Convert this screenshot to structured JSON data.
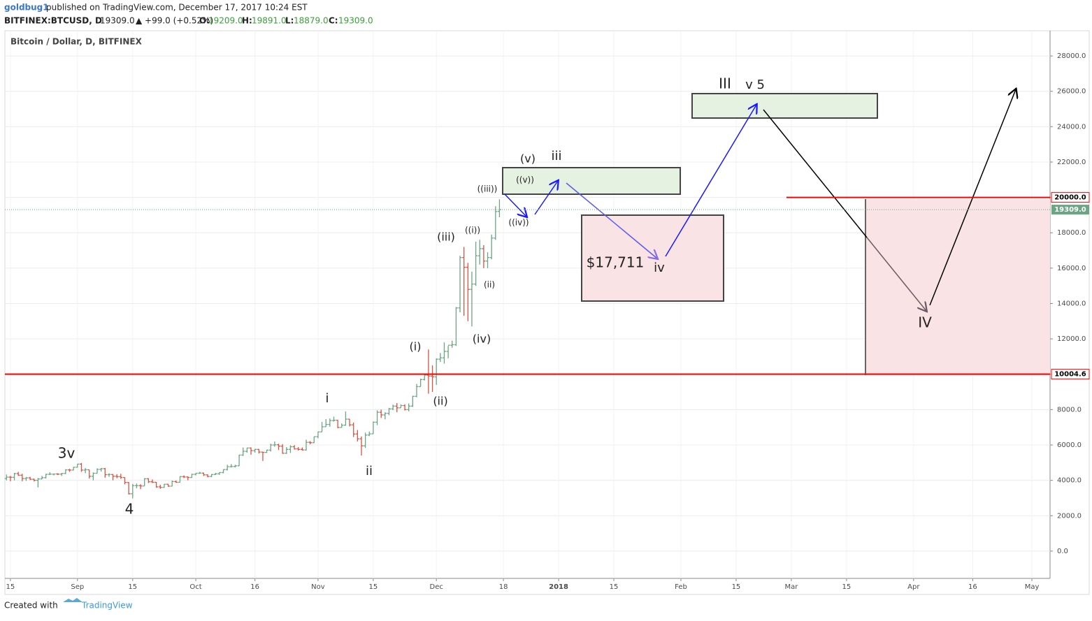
{
  "header": {
    "author": "goldbug1",
    "published": "published on TradingView.com, December 17, 2017 10:24 EST",
    "symbol": "BITFINEX:BTCUSD, D",
    "last": "19309.0",
    "change": "▲ +99.0 (+0.52%)",
    "o_label": "O:",
    "o": "19209.0",
    "h_label": "H:",
    "h": "19891.0",
    "l_label": "L:",
    "l": "18879.0",
    "c_label": "C:",
    "c": "19309.0"
  },
  "footer": {
    "created": "Created with",
    "brand": "TradingView"
  },
  "chart_data": {
    "type": "ohlc",
    "title": "Bitcoin / Dollar, D, BITFINEX",
    "up_color": "#6ba583",
    "down_color": "#d75442",
    "grid": true,
    "xlim": [
      -0.4,
      264.6
    ],
    "xticks": [
      {
        "value": 1,
        "label": "15"
      },
      {
        "value": 18,
        "label": "Sep"
      },
      {
        "value": 32,
        "label": "15"
      },
      {
        "value": 48,
        "label": "Oct"
      },
      {
        "value": 63,
        "label": "16"
      },
      {
        "value": 79,
        "label": "Nov"
      },
      {
        "value": 93,
        "label": "15"
      },
      {
        "value": 109,
        "label": "Dec"
      },
      {
        "value": 126,
        "label": "18"
      },
      {
        "value": 140,
        "label": "2018"
      },
      {
        "value": 154,
        "label": "15"
      },
      {
        "value": 171,
        "label": "Feb"
      },
      {
        "value": 185,
        "label": "15"
      },
      {
        "value": 199,
        "label": "Mar"
      },
      {
        "value": 213,
        "label": "15"
      },
      {
        "value": 230,
        "label": "Apr"
      },
      {
        "value": 245,
        "label": "16"
      },
      {
        "value": 260,
        "label": "May"
      }
    ],
    "ylim": [
      -1545,
      29426
    ],
    "yticks": [
      {
        "value": 0,
        "label": "0.0"
      },
      {
        "value": 2000,
        "label": "2000.0"
      },
      {
        "value": 4000,
        "label": "4000.0"
      },
      {
        "value": 6000,
        "label": "6000.0"
      },
      {
        "value": 8000,
        "label": "8000.0"
      },
      {
        "value": 10000,
        "label": "10000.0"
      },
      {
        "value": 12000,
        "label": "12000.0"
      },
      {
        "value": 14000,
        "label": "14000.0"
      },
      {
        "value": 16000,
        "label": "16000.0"
      },
      {
        "value": 18000,
        "label": "18000.0"
      },
      {
        "value": 20000,
        "label": "20000.0"
      },
      {
        "value": 22000,
        "label": "22000.0"
      },
      {
        "value": 24000,
        "label": "24000.0"
      },
      {
        "value": 26000,
        "label": "26000.0"
      },
      {
        "value": 28000,
        "label": "28000.0"
      }
    ],
    "levels": [
      {
        "value": 20000,
        "label": "20000.0",
        "color": "#ff0000"
      },
      {
        "value": 10004.6,
        "label": "10004.6",
        "color": "#ff0000"
      }
    ],
    "last_price": {
      "value": 19309,
      "label": "19309.0",
      "color": "#6ba583"
    },
    "annotations": [
      "3v",
      "4",
      "i",
      "ii",
      "(i)",
      "(ii)",
      "(iii)",
      "(iv)",
      "((i))",
      "(ii)",
      "((iii))",
      "((iv))",
      "((v))",
      "(v)",
      "iii",
      "$17,711",
      "iv",
      "III",
      "v 5",
      "IV"
    ],
    "bars": [
      [
        4100,
        4330,
        4000,
        4180
      ],
      [
        4180,
        4250,
        3950,
        4170
      ],
      [
        4170,
        4420,
        4000,
        4380
      ],
      [
        4380,
        4480,
        4250,
        4290
      ],
      [
        4290,
        4370,
        3950,
        4100
      ],
      [
        4100,
        4190,
        3970,
        4140
      ],
      [
        4140,
        4200,
        4020,
        4060
      ],
      [
        4060,
        4100,
        3940,
        4000
      ],
      [
        4000,
        4130,
        3600,
        4080
      ],
      [
        4080,
        4250,
        4060,
        4150
      ],
      [
        4150,
        4370,
        4110,
        4340
      ],
      [
        4340,
        4460,
        4300,
        4350
      ],
      [
        4350,
        4380,
        4280,
        4360
      ],
      [
        4360,
        4400,
        4300,
        4350
      ],
      [
        4350,
        4420,
        4250,
        4390
      ],
      [
        4390,
        4630,
        4350,
        4590
      ],
      [
        4590,
        4650,
        4480,
        4580
      ],
      [
        4580,
        4760,
        4560,
        4740
      ],
      [
        4740,
        4930,
        4720,
        4920
      ],
      [
        4920,
        4980,
        4480,
        4580
      ],
      [
        4580,
        4700,
        4400,
        4600
      ],
      [
        4600,
        4600,
        4100,
        4230
      ],
      [
        4230,
        4450,
        4000,
        4400
      ],
      [
        4400,
        4680,
        4390,
        4620
      ],
      [
        4620,
        4700,
        4500,
        4660
      ],
      [
        4660,
        4700,
        4150,
        4320
      ],
      [
        4320,
        4400,
        4200,
        4330
      ],
      [
        4330,
        4350,
        4000,
        4230
      ],
      [
        4230,
        4350,
        4120,
        4210
      ],
      [
        4210,
        4370,
        4080,
        4160
      ],
      [
        4160,
        4170,
        3770,
        3880
      ],
      [
        3880,
        3900,
        3200,
        3240
      ],
      [
        3240,
        3800,
        2980,
        3700
      ],
      [
        3700,
        3820,
        3550,
        3700
      ],
      [
        3700,
        3780,
        3500,
        3680
      ],
      [
        3680,
        4120,
        3680,
        4090
      ],
      [
        4090,
        4120,
        3850,
        3920
      ],
      [
        3920,
        4050,
        3850,
        3890
      ],
      [
        3890,
        3910,
        3580,
        3630
      ],
      [
        3630,
        3750,
        3520,
        3600
      ],
      [
        3600,
        3800,
        3580,
        3780
      ],
      [
        3780,
        3800,
        3640,
        3670
      ],
      [
        3670,
        3990,
        3660,
        3930
      ],
      [
        3930,
        3990,
        3860,
        3890
      ],
      [
        3890,
        4230,
        3880,
        4210
      ],
      [
        4210,
        4280,
        4130,
        4190
      ],
      [
        4190,
        4220,
        4000,
        4160
      ],
      [
        4160,
        4370,
        4150,
        4340
      ],
      [
        4340,
        4410,
        4280,
        4400
      ],
      [
        4400,
        4480,
        4370,
        4410
      ],
      [
        4410,
        4440,
        4250,
        4310
      ],
      [
        4310,
        4340,
        4170,
        4220
      ],
      [
        4220,
        4350,
        4180,
        4330
      ],
      [
        4330,
        4420,
        4300,
        4370
      ],
      [
        4370,
        4460,
        4310,
        4440
      ],
      [
        4440,
        4620,
        4400,
        4610
      ],
      [
        4610,
        4880,
        4560,
        4770
      ],
      [
        4770,
        4920,
        4730,
        4780
      ],
      [
        4780,
        4880,
        4730,
        4820
      ],
      [
        4820,
        5450,
        4810,
        5430
      ],
      [
        5430,
        5860,
        5380,
        5640
      ],
      [
        5640,
        5840,
        5560,
        5830
      ],
      [
        5830,
        5860,
        5450,
        5680
      ],
      [
        5680,
        5780,
        5570,
        5750
      ],
      [
        5750,
        5770,
        5520,
        5600
      ],
      [
        5600,
        5620,
        5100,
        5580
      ],
      [
        5580,
        5730,
        5550,
        5710
      ],
      [
        5710,
        6070,
        5630,
        6000
      ],
      [
        6000,
        6200,
        5900,
        6010
      ],
      [
        6010,
        6070,
        5710,
        5930
      ],
      [
        5930,
        6050,
        5500,
        5530
      ],
      [
        5530,
        5880,
        5490,
        5750
      ],
      [
        5750,
        5980,
        5550,
        5900
      ],
      [
        5900,
        5990,
        5740,
        5780
      ],
      [
        5780,
        5880,
        5680,
        5750
      ],
      [
        5750,
        5860,
        5680,
        5720
      ],
      [
        5720,
        6300,
        5680,
        6150
      ],
      [
        6150,
        6220,
        6040,
        6130
      ],
      [
        6130,
        6470,
        6110,
        6470
      ],
      [
        6470,
        6750,
        6380,
        6740
      ],
      [
        6740,
        7300,
        6740,
        7030
      ],
      [
        7030,
        7460,
        7030,
        7160
      ],
      [
        7160,
        7500,
        7030,
        7380
      ],
      [
        7380,
        7600,
        7320,
        7400
      ],
      [
        7400,
        7420,
        6950,
        6990
      ],
      [
        6990,
        7220,
        6980,
        7120
      ],
      [
        7120,
        7900,
        7090,
        7460
      ],
      [
        7460,
        7470,
        7050,
        7140
      ],
      [
        7140,
        7270,
        6450,
        6620
      ],
      [
        6620,
        6850,
        6200,
        6350
      ],
      [
        6350,
        6480,
        5400,
        5950
      ],
      [
        5950,
        6700,
        5830,
        6560
      ],
      [
        6560,
        6760,
        6500,
        6630
      ],
      [
        6630,
        7330,
        6630,
        7290
      ],
      [
        7290,
        7960,
        7120,
        7850
      ],
      [
        7850,
        8000,
        7530,
        7700
      ],
      [
        7700,
        7850,
        7450,
        7790
      ],
      [
        7790,
        8100,
        7680,
        8040
      ],
      [
        8040,
        8280,
        7970,
        8200
      ],
      [
        8200,
        8370,
        7850,
        8100
      ],
      [
        8100,
        8290,
        8100,
        8230
      ],
      [
        8230,
        8300,
        7950,
        8000
      ],
      [
        8000,
        8350,
        7900,
        8200
      ],
      [
        8200,
        8780,
        8150,
        8750
      ],
      [
        8750,
        9450,
        8700,
        9300
      ],
      [
        9300,
        9750,
        9300,
        9700
      ],
      [
        9700,
        10000,
        9650,
        9950
      ],
      [
        9950,
        11400,
        8900,
        9900
      ],
      [
        9900,
        10500,
        9000,
        9850
      ],
      [
        9850,
        10900,
        9400,
        10850
      ],
      [
        10850,
        11200,
        10700,
        10930
      ],
      [
        10930,
        11800,
        10600,
        11290
      ],
      [
        11290,
        11600,
        10900,
        11640
      ],
      [
        11640,
        11900,
        11500,
        11670
      ],
      [
        11670,
        13800,
        11600,
        13750
      ],
      [
        13750,
        16700,
        13500,
        16600
      ],
      [
        16600,
        17200,
        13300,
        16050
      ],
      [
        16050,
        16300,
        13000,
        14800
      ],
      [
        14800,
        15800,
        12700,
        15100
      ],
      [
        15100,
        17500,
        15000,
        16700
      ],
      [
        16700,
        17600,
        16200,
        17100
      ],
      [
        17100,
        17300,
        16000,
        16400
      ],
      [
        16400,
        16900,
        16000,
        16600
      ],
      [
        16600,
        17900,
        16500,
        17700
      ],
      [
        17700,
        19500,
        17600,
        19200
      ],
      [
        19209,
        19891,
        18879,
        19309
      ]
    ]
  }
}
